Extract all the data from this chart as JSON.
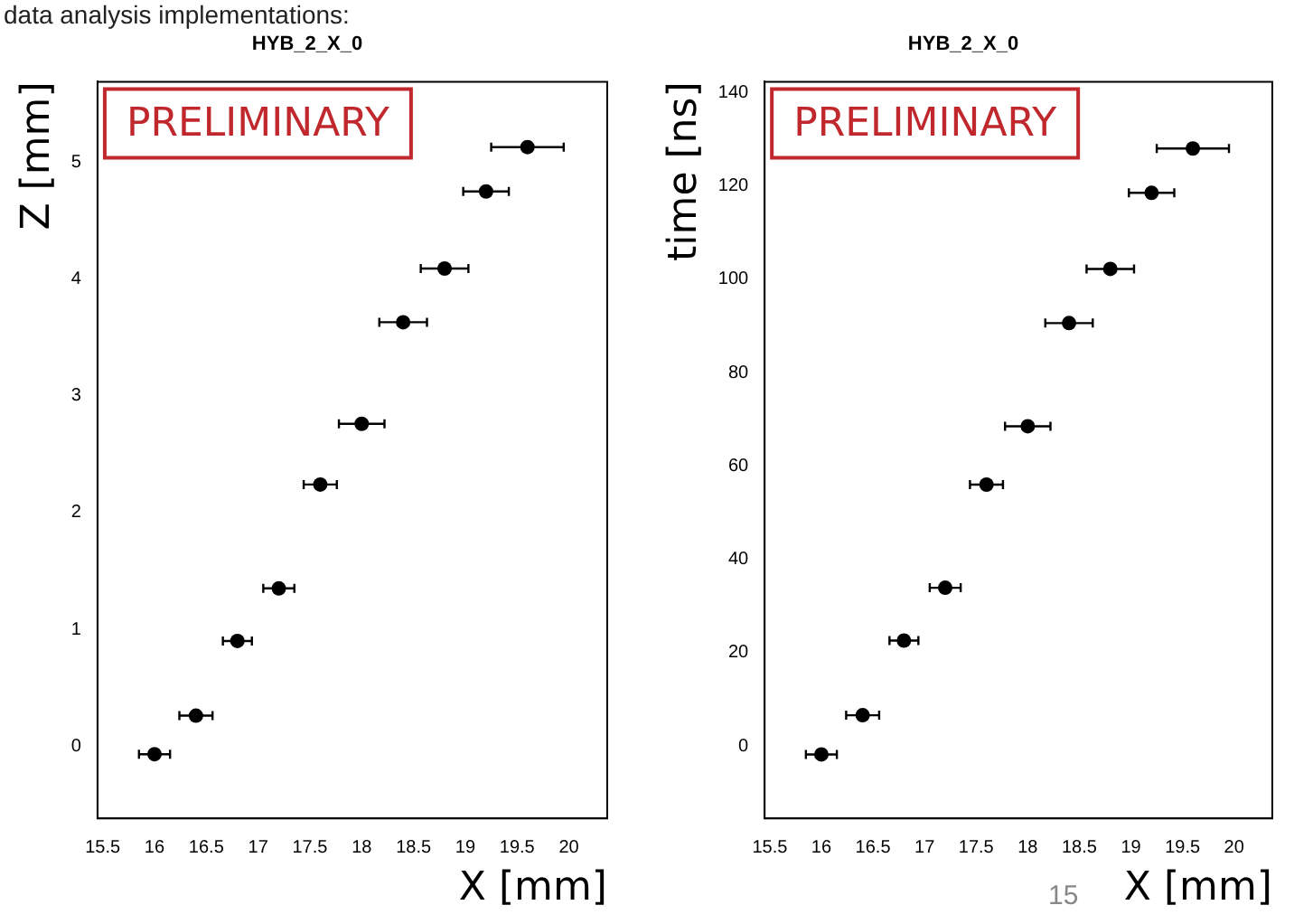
{
  "chart_data": [
    {
      "type": "scatter",
      "title": "HYB_2_X_0",
      "xlabel": "X [mm]",
      "ylabel": "Z [mm]",
      "x": [
        16,
        16.4,
        16.8,
        17.2,
        17.6,
        18,
        18.4,
        18.8,
        19.2,
        19.6
      ],
      "series": [
        {
          "color": "#000000",
          "values": [
            -0.07,
            0.26,
            0.9,
            1.35,
            2.24,
            2.76,
            3.63,
            4.09,
            4.75,
            5.13
          ],
          "xerrors": [
            0.15,
            0.16,
            0.14,
            0.15,
            0.16,
            0.22,
            0.23,
            0.23,
            0.22,
            0.35
          ]
        }
      ],
      "xlim": [
        15.45,
        20.37
      ],
      "ylim": [
        -0.62,
        5.69
      ],
      "xticks": [
        15.5,
        16,
        16.5,
        17,
        17.5,
        18,
        18.5,
        19,
        19.5,
        20
      ],
      "yticks": [
        0,
        1,
        2,
        3,
        4,
        5
      ],
      "grid": false,
      "legend": false,
      "marker": "circle",
      "annotations": [
        "PRELIMINARY",
        "data analysis implementations:"
      ]
    },
    {
      "type": "scatter",
      "title": "HYB_2_X_0",
      "xlabel": "X [mm]",
      "ylabel": "time [ns]",
      "x": [
        16,
        16.4,
        16.8,
        17.2,
        17.6,
        18,
        18.4,
        18.8,
        19.2,
        19.6
      ],
      "series": [
        {
          "color": "#000000",
          "values": [
            -1.8,
            6.6,
            22.6,
            33.9,
            56,
            68.5,
            90.6,
            102.2,
            118.5,
            128
          ],
          "xerrors": [
            0.15,
            0.16,
            0.14,
            0.15,
            0.16,
            0.22,
            0.23,
            0.23,
            0.22,
            0.35
          ]
        }
      ],
      "xlim": [
        15.45,
        20.37
      ],
      "ylim": [
        -15.5,
        142.3
      ],
      "xticks": [
        15.5,
        16,
        16.5,
        17,
        17.5,
        18,
        18.5,
        19,
        19.5,
        20
      ],
      "yticks": [
        0,
        20,
        40,
        60,
        80,
        100,
        120,
        140
      ],
      "grid": false,
      "legend": false,
      "marker": "circle",
      "annotations": [
        "PRELIMINARY",
        "15"
      ]
    }
  ]
}
